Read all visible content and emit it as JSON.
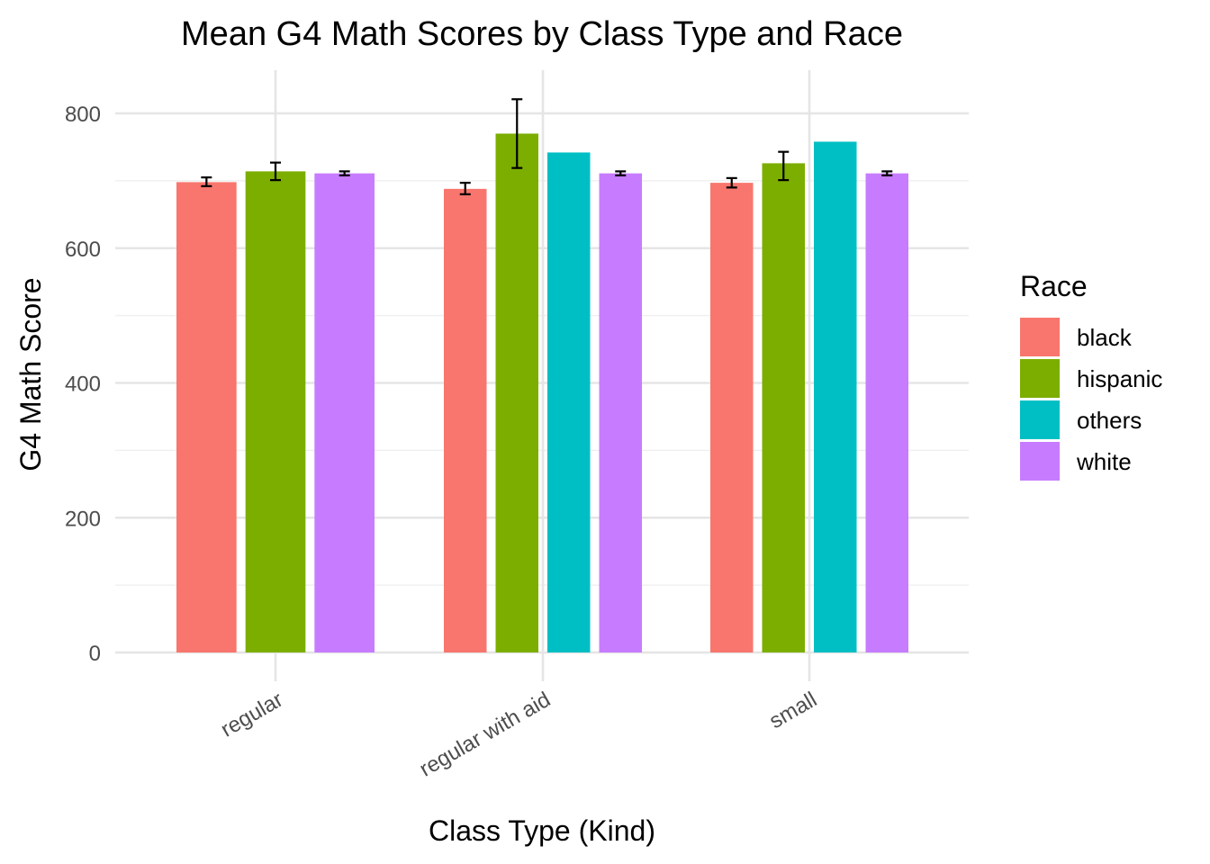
{
  "chart_data": {
    "type": "bar",
    "title": "Mean G4 Math Scores by Class Type and Race",
    "xlabel": "Class Type (Kind)",
    "ylabel": "G4 Math Score",
    "ylim": [
      0,
      800
    ],
    "yticks": [
      0,
      200,
      400,
      600,
      800
    ],
    "grid": true,
    "legend": {
      "title": "Race",
      "position": "right",
      "items": [
        {
          "name": "black",
          "color": "#F8766D"
        },
        {
          "name": "hispanic",
          "color": "#7CAE00"
        },
        {
          "name": "others",
          "color": "#00BFC4"
        },
        {
          "name": "white",
          "color": "#C77CFF"
        }
      ]
    },
    "categories": [
      "regular",
      "regular with aid",
      "small"
    ],
    "groups": [
      {
        "category": "regular",
        "bars": [
          {
            "race": "black",
            "value": 698,
            "err_low": 692,
            "err_high": 705
          },
          {
            "race": "hispanic",
            "value": 714,
            "err_low": 701,
            "err_high": 727
          },
          {
            "race": "white",
            "value": 711,
            "err_low": 708,
            "err_high": 714
          }
        ]
      },
      {
        "category": "regular with aid",
        "bars": [
          {
            "race": "black",
            "value": 688,
            "err_low": 680,
            "err_high": 697
          },
          {
            "race": "hispanic",
            "value": 770,
            "err_low": 719,
            "err_high": 821
          },
          {
            "race": "others",
            "value": 742,
            "err_low": null,
            "err_high": null
          },
          {
            "race": "white",
            "value": 711,
            "err_low": 708,
            "err_high": 714
          }
        ]
      },
      {
        "category": "small",
        "bars": [
          {
            "race": "black",
            "value": 697,
            "err_low": 690,
            "err_high": 704
          },
          {
            "race": "hispanic",
            "value": 726,
            "err_low": 701,
            "err_high": 743
          },
          {
            "race": "others",
            "value": 758,
            "err_low": null,
            "err_high": null
          },
          {
            "race": "white",
            "value": 711,
            "err_low": 708,
            "err_high": 714
          }
        ]
      }
    ]
  }
}
